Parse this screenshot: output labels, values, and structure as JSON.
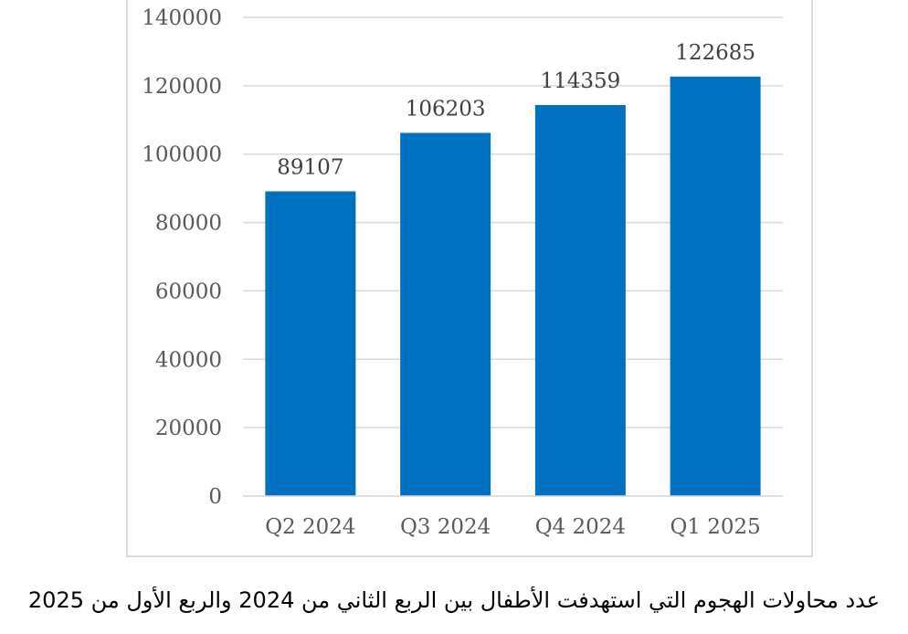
{
  "chart_data": {
    "type": "bar",
    "categories": [
      "Q2 2024",
      "Q3 2024",
      "Q4 2024",
      "Q1 2025"
    ],
    "values": [
      89107,
      106203,
      114359,
      122685
    ],
    "data_labels": [
      "89107",
      "106203",
      "114359",
      "122685"
    ],
    "ylim": [
      0,
      140000
    ],
    "yticks": [
      0,
      20000,
      40000,
      60000,
      80000,
      100000,
      120000,
      140000
    ],
    "ytick_labels": [
      "0",
      "20000",
      "40000",
      "60000",
      "80000",
      "100000",
      "120000",
      "140000"
    ],
    "grid": true,
    "legend": "none",
    "bar_color": "#0070C0",
    "grid_color": "#D9D9D9",
    "frame_color": "#D0D0D0",
    "caption": "عدد محاولات الهجوم التي استهدفت الأطفال بين الربع الثاني من 2024 والربع الأول من 2025"
  }
}
